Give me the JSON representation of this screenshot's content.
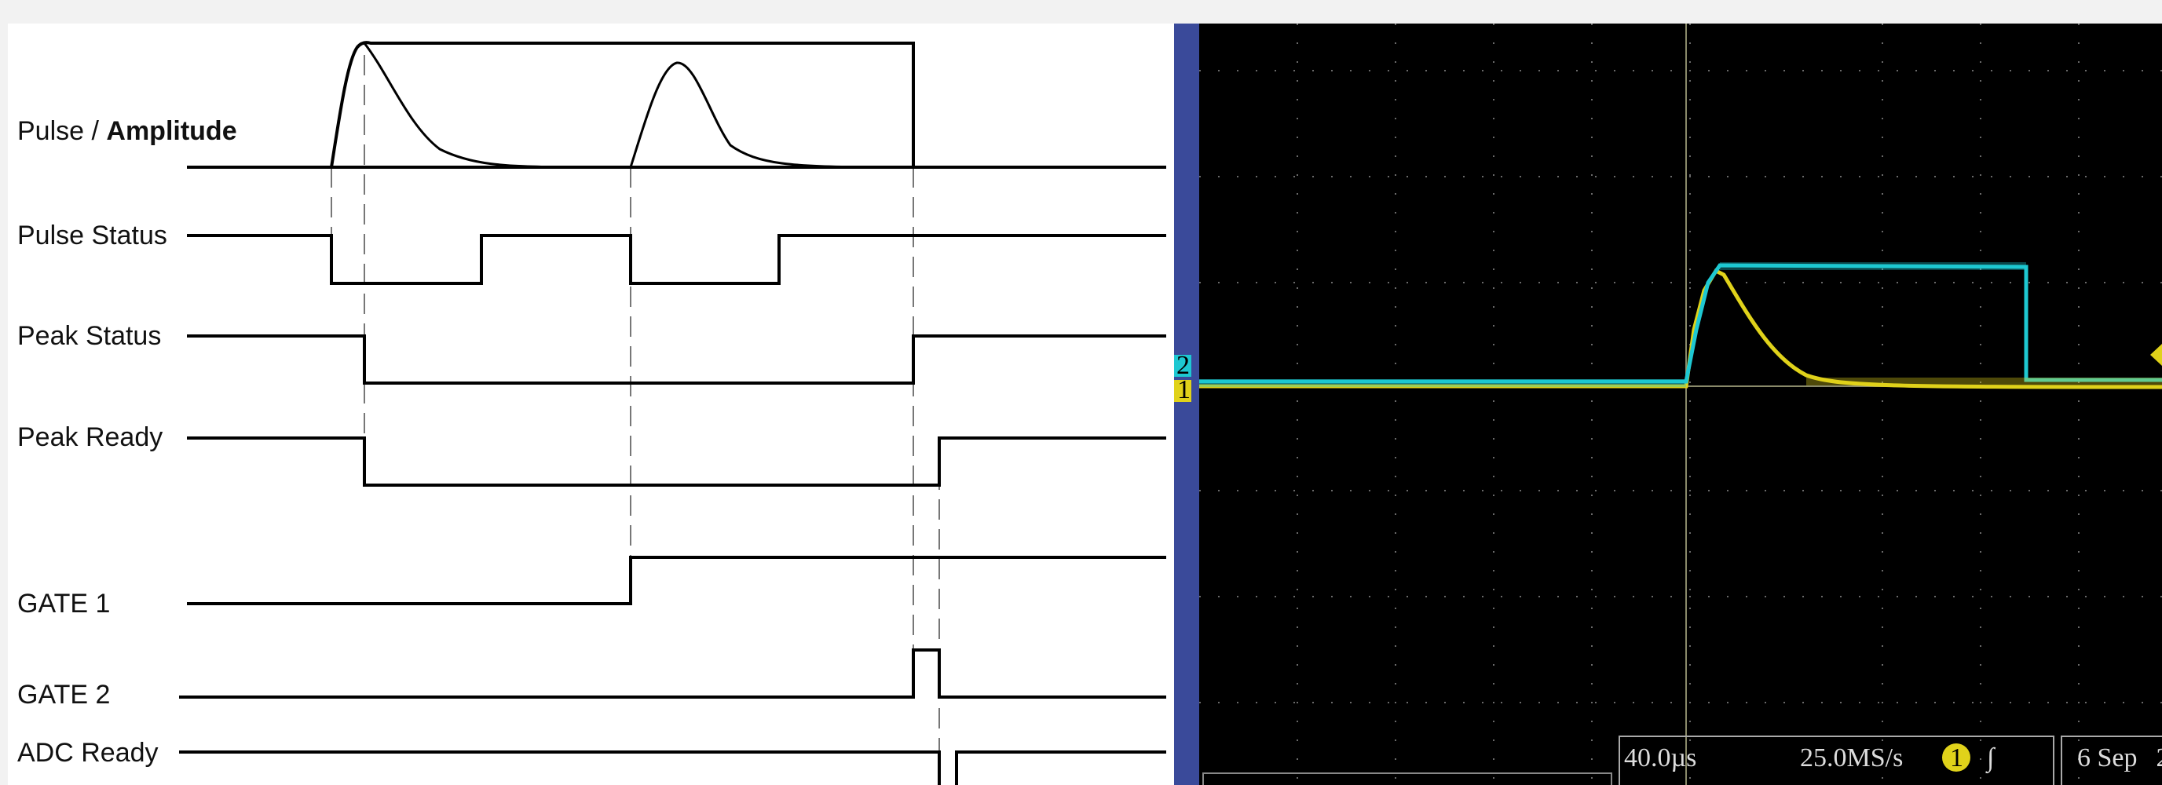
{
  "timing_diagram": {
    "signals": [
      {
        "name": "Pulse / ",
        "name_bold": "Amplitude"
      },
      {
        "name": "Pulse Status"
      },
      {
        "name": "Peak Status"
      },
      {
        "name": "Peak Ready"
      },
      {
        "name": "GATE 1"
      },
      {
        "name": "GATE 2"
      },
      {
        "name": "ADC Ready"
      }
    ]
  },
  "oscilloscope": {
    "channel_markers": {
      "ch1": "1",
      "ch2": "2"
    },
    "readout": {
      "timebase": "40.0µs",
      "sample_rate": "25.0MS/s",
      "trigger_channel": "1",
      "trigger_slope": "∫",
      "date": "6 Sep",
      "date_suffix": "2"
    },
    "colors": {
      "ch1": "#e0d21a",
      "ch2": "#1ec8d2",
      "screen": "#000000",
      "bezel": "#3a4a9a",
      "grid": "#6a6a6a"
    }
  }
}
